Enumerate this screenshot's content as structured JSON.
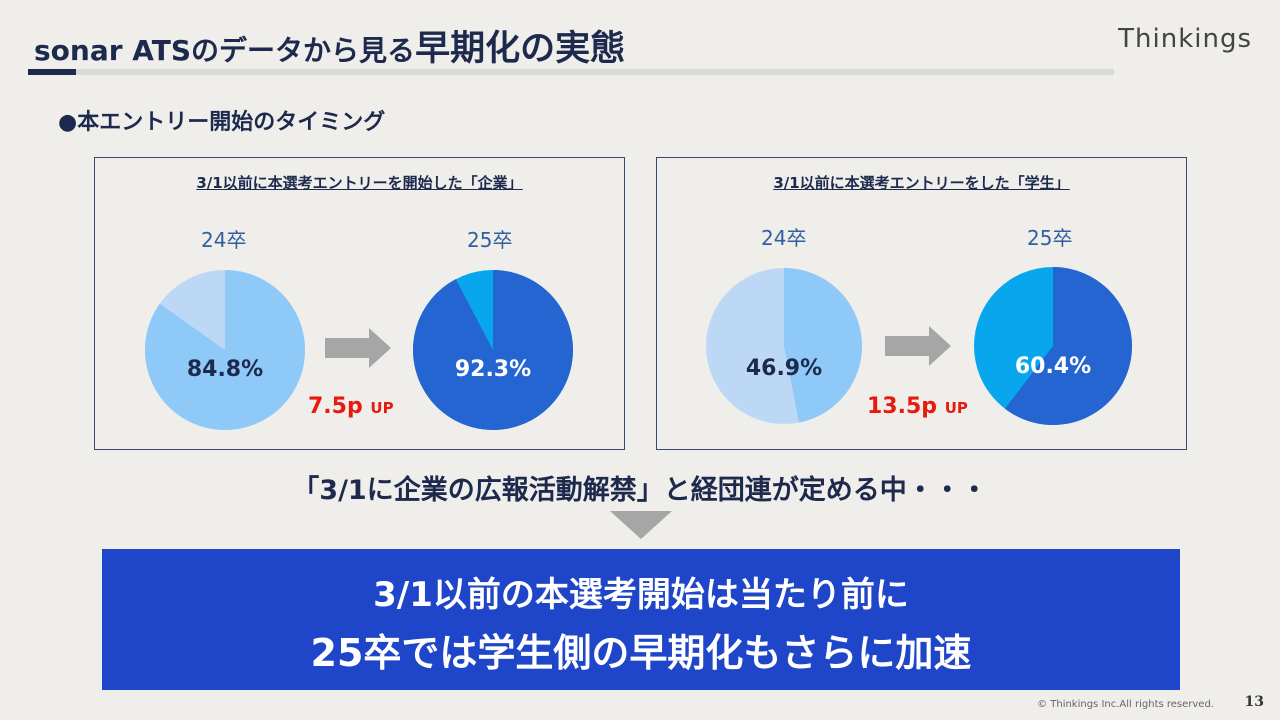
{
  "header": {
    "title_prefix": "sonar ATSのデータから見る",
    "title_emphasis": "早期化の実態",
    "brand": "Thinkings"
  },
  "section_heading": "●本エントリー開始のタイミング",
  "chart_data": [
    {
      "type": "pie",
      "title": "3/1以前に本選考エントリーを開始した「企業」",
      "charts": [
        {
          "label": "24卒",
          "value": 84.8,
          "value_label": "84.8%",
          "colors": [
            "#8ec9f8",
            "#bcd8f5"
          ]
        },
        {
          "label": "25卒",
          "value": 92.3,
          "value_label": "92.3%",
          "colors": [
            "#2565d1",
            "#08a6ec"
          ]
        }
      ],
      "diff_value": "7.5p",
      "diff_unit": "UP"
    },
    {
      "type": "pie",
      "title": "3/1以前に本選考エントリーをした「学生」",
      "charts": [
        {
          "label": "24卒",
          "value": 46.9,
          "value_label": "46.9%",
          "colors": [
            "#8ec9f8",
            "#bcd8f5"
          ]
        },
        {
          "label": "25卒",
          "value": 60.4,
          "value_label": "60.4%",
          "colors": [
            "#2565d1",
            "#08a6ec"
          ]
        }
      ],
      "diff_value": "13.5p",
      "diff_unit": "UP"
    }
  ],
  "message": "「3/1に企業の広報活動解禁」と経団連が定める中・・・",
  "conclusion": {
    "line1": "3/1以前の本選考開始は当たり前に",
    "line2": "25卒では学生側の早期化もさらに加速"
  },
  "footer": {
    "copyright": "© Thinkings Inc.All rights reserved.",
    "page": "13"
  },
  "colors": {
    "navy": "#1d2a4d",
    "accent_red": "#e8190f",
    "box_blue": "#1f45c8"
  }
}
